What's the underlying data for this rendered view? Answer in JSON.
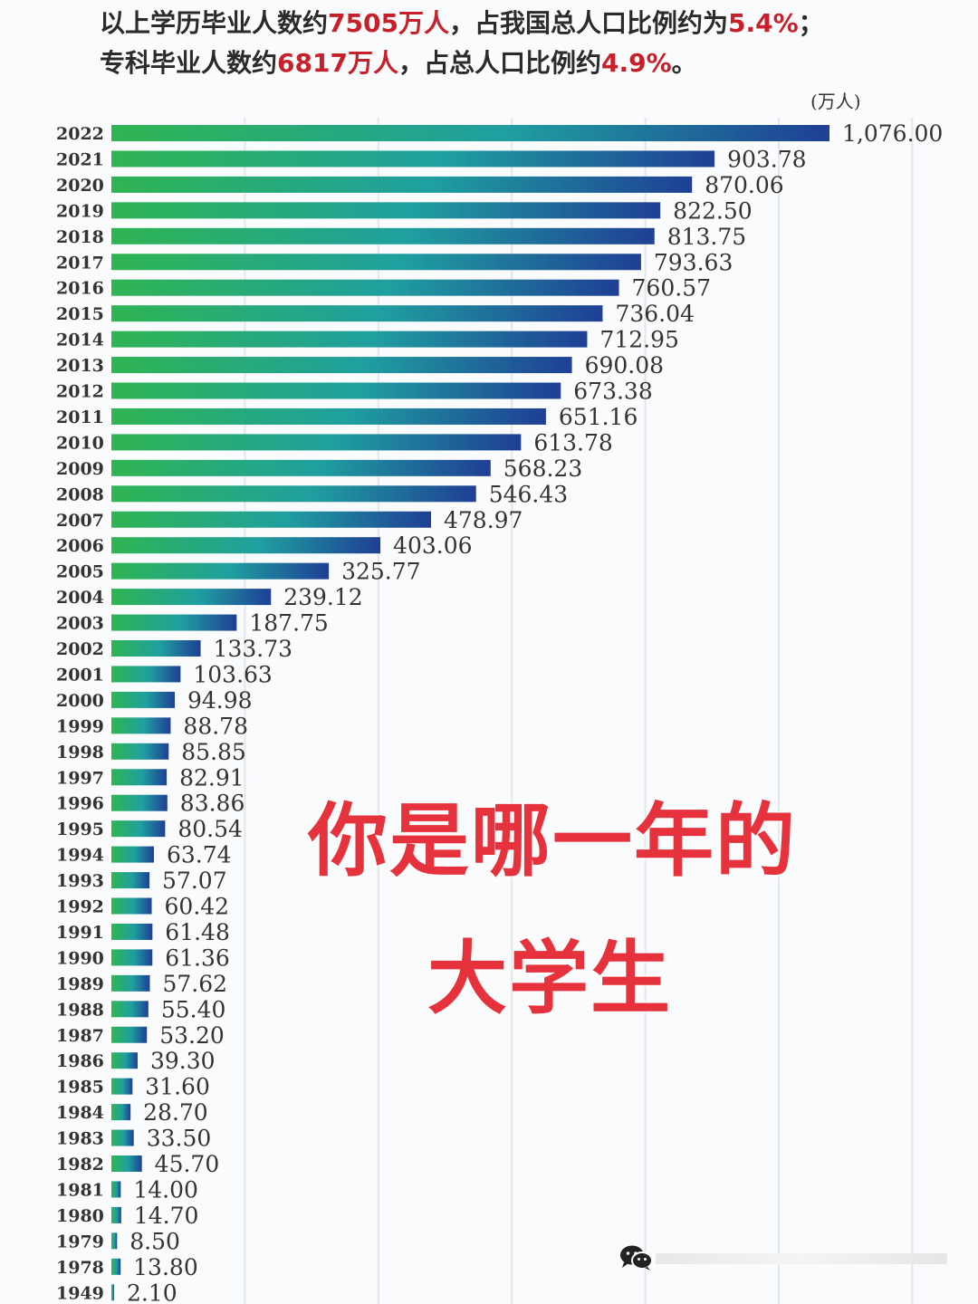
{
  "header": {
    "line1": [
      {
        "text": "以上学历毕业人数约",
        "hl": false
      },
      {
        "text": "7505万人",
        "hl": true
      },
      {
        "text": "，占我国总人口比例约为",
        "hl": false
      },
      {
        "text": "5.4%",
        "hl": true
      },
      {
        "text": "；",
        "hl": false
      }
    ],
    "line2": [
      {
        "text": "专科毕业人数约",
        "hl": false
      },
      {
        "text": "6817万人",
        "hl": true
      },
      {
        "text": "，占总人口比例约",
        "hl": false
      },
      {
        "text": "4.9%",
        "hl": true
      },
      {
        "text": "。",
        "hl": false
      }
    ]
  },
  "unit_label": "(万人)",
  "overlay": {
    "line1": "你是哪一年的",
    "line2": "大学生"
  },
  "colors": {
    "bar_start": "#2fb552",
    "bar_mid": "#1f9fa0",
    "bar_end": "#1f3f95",
    "highlight": "#c8202b",
    "overlay": "#e5323c"
  },
  "icons": {
    "watermark": "wechat-icon"
  },
  "chart_data": {
    "type": "bar",
    "orientation": "horizontal",
    "categories": [
      "2022",
      "2021",
      "2020",
      "2019",
      "2018",
      "2017",
      "2016",
      "2015",
      "2014",
      "2013",
      "2012",
      "2011",
      "2010",
      "2009",
      "2008",
      "2007",
      "2006",
      "2005",
      "2004",
      "2003",
      "2002",
      "2001",
      "2000",
      "1999",
      "1998",
      "1997",
      "1996",
      "1995",
      "1994",
      "1993",
      "1992",
      "1991",
      "1990",
      "1989",
      "1988",
      "1987",
      "1986",
      "1985",
      "1984",
      "1983",
      "1982",
      "1981",
      "1980",
      "1979",
      "1978",
      "1949"
    ],
    "values": [
      1076.0,
      903.78,
      870.06,
      822.5,
      813.75,
      793.63,
      760.57,
      736.04,
      712.95,
      690.08,
      673.38,
      651.16,
      613.78,
      568.23,
      546.43,
      478.97,
      403.06,
      325.77,
      239.12,
      187.75,
      133.73,
      103.63,
      94.98,
      88.78,
      85.85,
      82.91,
      83.86,
      80.54,
      63.74,
      57.07,
      60.42,
      61.48,
      61.36,
      57.62,
      55.4,
      53.2,
      39.3,
      31.6,
      28.7,
      33.5,
      45.7,
      14.0,
      14.7,
      8.5,
      13.8,
      2.1
    ],
    "value_labels": [
      "1,076.00",
      "903.78",
      "870.06",
      "822.50",
      "813.75",
      "793.63",
      "760.57",
      "736.04",
      "712.95",
      "690.08",
      "673.38",
      "651.16",
      "613.78",
      "568.23",
      "546.43",
      "478.97",
      "403.06",
      "325.77",
      "239.12",
      "187.75",
      "133.73",
      "103.63",
      "94.98",
      "88.78",
      "85.85",
      "82.91",
      "83.86",
      "80.54",
      "63.74",
      "57.07",
      "60.42",
      "61.48",
      "61.36",
      "57.62",
      "55.40",
      "53.20",
      "39.30",
      "31.60",
      "28.70",
      "33.50",
      "45.70",
      "14.00",
      "14.70",
      "8.50",
      "13.80",
      "2.10"
    ],
    "xlim": [
      0,
      1200
    ],
    "grid": true
  }
}
